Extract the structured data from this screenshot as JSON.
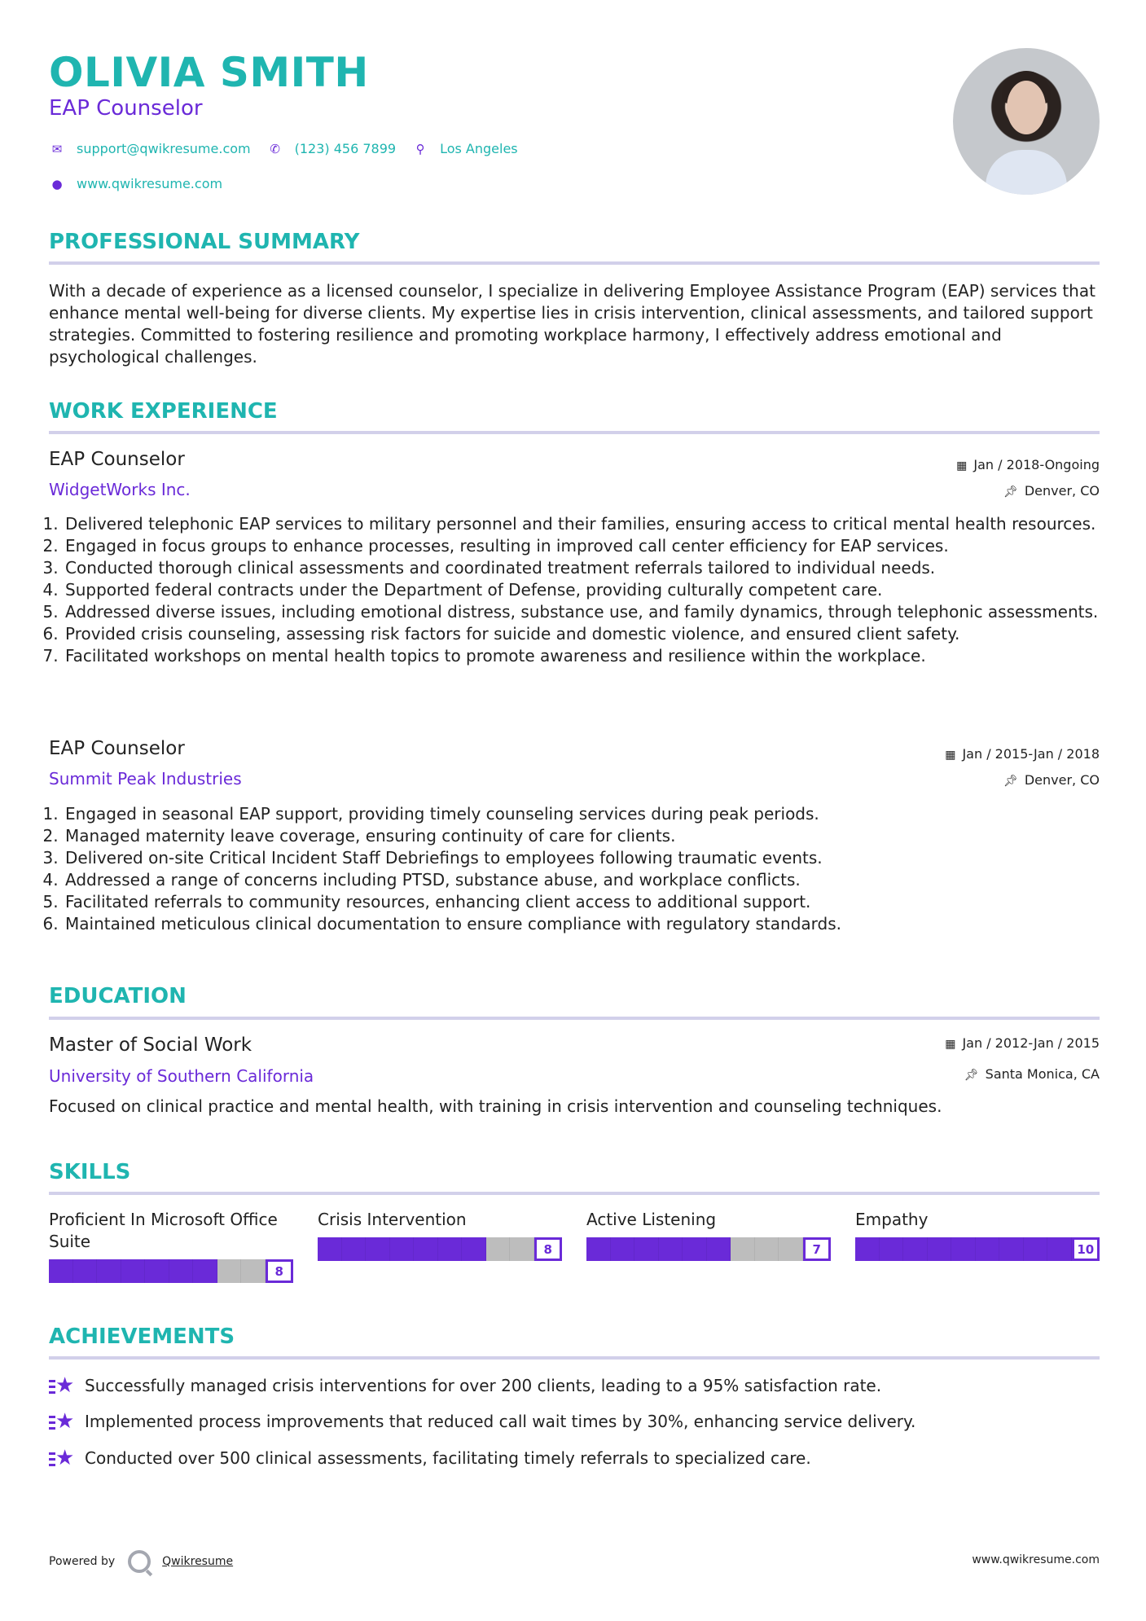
{
  "header": {
    "name": "OLIVIA SMITH",
    "title": "EAP Counselor",
    "email": "support@qwikresume.com",
    "phone": "(123) 456 7899",
    "location": "Los Angeles",
    "website": "www.qwikresume.com"
  },
  "summary": {
    "heading": "PROFESSIONAL SUMMARY",
    "text": "With a decade of experience as a licensed counselor, I specialize in delivering Employee Assistance Program (EAP) services that enhance mental well-being for diverse clients. My expertise lies in crisis intervention, clinical assessments, and tailored support strategies. Committed to fostering resilience and promoting workplace harmony, I effectively address emotional and psychological challenges."
  },
  "experience": {
    "heading": "WORK EXPERIENCE",
    "jobs": [
      {
        "title": "EAP Counselor",
        "company": "WidgetWorks Inc.",
        "dates": "Jan / 2018-Ongoing",
        "location": "Denver, CO",
        "bullets": [
          "Delivered telephonic EAP services to military personnel and their families, ensuring access to critical mental health resources.",
          "Engaged in focus groups to enhance processes, resulting in improved call center efficiency for EAP services.",
          "Conducted thorough clinical assessments and coordinated treatment referrals tailored to individual needs.",
          "Supported federal contracts under the Department of Defense, providing culturally competent care.",
          "Addressed diverse issues, including emotional distress, substance use, and family dynamics, through telephonic assessments.",
          "Provided crisis counseling, assessing risk factors for suicide and domestic violence, and ensured client safety.",
          "Facilitated workshops on mental health topics to promote awareness and resilience within the workplace."
        ]
      },
      {
        "title": "EAP Counselor",
        "company": "Summit Peak Industries",
        "dates": "Jan / 2015-Jan / 2018",
        "location": "Denver, CO",
        "bullets": [
          "Engaged in seasonal EAP support, providing timely counseling services during peak periods.",
          "Managed maternity leave coverage, ensuring continuity of care for clients.",
          "Delivered on-site Critical Incident Staff Debriefings to employees following traumatic events.",
          "Addressed a range of concerns including PTSD, substance abuse, and workplace conflicts.",
          "Facilitated referrals to community resources, enhancing client access to additional support.",
          "Maintained meticulous clinical documentation to ensure compliance with regulatory standards."
        ]
      }
    ]
  },
  "education": {
    "heading": "EDUCATION",
    "degree": "Master of Social Work",
    "school": "University of Southern California",
    "dates": "Jan / 2012-Jan / 2015",
    "location": "Santa Monica, CA",
    "description": "Focused on clinical practice and mental health, with training in crisis intervention and counseling techniques."
  },
  "skills": {
    "heading": "SKILLS",
    "items": [
      {
        "name": "Proficient In Microsoft Office Suite",
        "level": 8
      },
      {
        "name": "Crisis Intervention",
        "level": 8
      },
      {
        "name": "Active Listening",
        "level": 7
      },
      {
        "name": "Empathy",
        "level": 10
      }
    ],
    "max": 10
  },
  "achievements": {
    "heading": "ACHIEVEMENTS",
    "items": [
      "Successfully managed crisis interventions for over 200 clients, leading to a 95% satisfaction rate.",
      "Implemented process improvements that reduced call wait times by 30%, enhancing service delivery.",
      "Conducted over 500 clinical assessments, facilitating timely referrals to specialized care."
    ]
  },
  "footer": {
    "powered_by": "Powered by",
    "brand": "Qwikresume",
    "website": "www.qwikresume.com"
  },
  "colors": {
    "accent_teal": "#1fb5b0",
    "accent_purple": "#6a2ad8",
    "rule": "#d2d0ea",
    "bar_empty": "#bdbdbd"
  }
}
